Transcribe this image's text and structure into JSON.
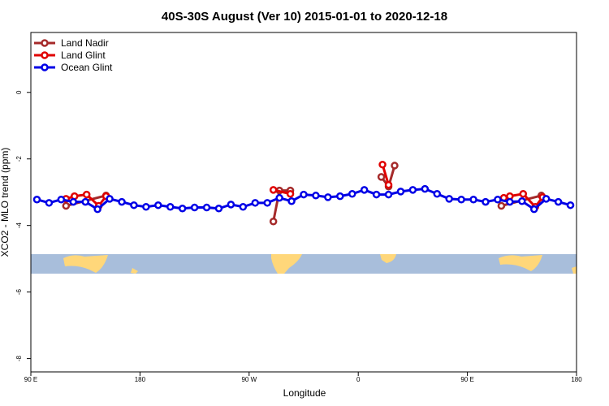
{
  "chart_data": {
    "type": "line",
    "title": "40S-30S August (Ver 10)   2015-01-01 to 2020-12-18",
    "xlabel": "Longitude",
    "ylabel": "XCO2 - MLO trend (ppm)",
    "xlim": [
      90,
      540
    ],
    "xticks": [
      {
        "value": 90,
        "label": "90 E"
      },
      180,
      {
        "value": 270,
        "label": "90 W"
      },
      {
        "value": 360,
        "label": "0"
      },
      {
        "value": 450,
        "label": "90 E"
      },
      {
        "value": 540,
        "label": "180"
      }
    ],
    "ylim": [
      -8.4,
      1.8
    ],
    "yticks": [
      -8,
      -6,
      -4,
      -2,
      0
    ],
    "legend": "upper left",
    "series": [
      {
        "name": "Land Nadir",
        "color": "#a52a2a",
        "x": [
          119,
          152,
          null,
          290,
          295,
          304,
          null,
          379,
          385,
          390,
          null,
          478,
          511
        ],
        "values": [
          -3.41,
          -3.1,
          null,
          -3.88,
          -2.95,
          -2.95,
          null,
          -2.54,
          -2.83,
          -2.2,
          null,
          -3.41,
          -3.1
        ]
      },
      {
        "name": "Land Glint",
        "color": "#e00000",
        "x": [
          119,
          126,
          136,
          146,
          152,
          null,
          290,
          304,
          null,
          380,
          385,
          null,
          480,
          485,
          496,
          506,
          512
        ],
        "values": [
          -3.2,
          -3.12,
          -3.07,
          -3.41,
          -3.12,
          null,
          -2.93,
          -3.05,
          null,
          -2.17,
          -2.78,
          null,
          -3.17,
          -3.12,
          -3.05,
          -3.44,
          -3.15
        ]
      },
      {
        "name": "Ocean Glint",
        "color": "#0000e6",
        "x": [
          95,
          105,
          115,
          125,
          135,
          145,
          155,
          165,
          175,
          185,
          195,
          205,
          215,
          225,
          235,
          245,
          255,
          265,
          275,
          285,
          295,
          305,
          315,
          325,
          335,
          345,
          355,
          365,
          375,
          385,
          395,
          405,
          415,
          425,
          435,
          445,
          455,
          465,
          475,
          485,
          495,
          505,
          515,
          525,
          535
        ],
        "values": [
          -3.22,
          -3.32,
          -3.22,
          -3.29,
          -3.29,
          -3.51,
          -3.2,
          -3.29,
          -3.39,
          -3.44,
          -3.39,
          -3.44,
          -3.49,
          -3.46,
          -3.46,
          -3.49,
          -3.37,
          -3.44,
          -3.32,
          -3.32,
          -3.17,
          -3.27,
          -3.07,
          -3.1,
          -3.15,
          -3.12,
          -3.05,
          -2.93,
          -3.07,
          -3.07,
          -2.98,
          -2.93,
          -2.9,
          -3.05,
          -3.2,
          -3.22,
          -3.22,
          -3.29,
          -3.22,
          -3.29,
          -3.27,
          -3.51,
          -3.2,
          -3.29,
          -3.39
        ]
      }
    ]
  }
}
